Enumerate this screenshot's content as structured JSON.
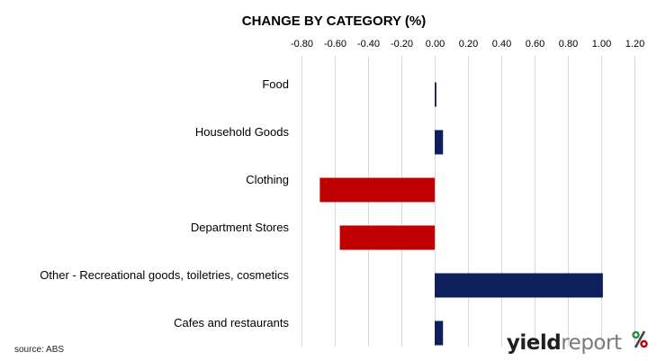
{
  "chart_data": {
    "type": "bar",
    "orientation": "horizontal",
    "title": "CHANGE BY CATEGORY (%)",
    "xlabel": "",
    "ylabel": "",
    "x_ticks": [
      "-0.80",
      "-0.60",
      "-0.40",
      "-0.20",
      "0.00",
      "0.20",
      "0.40",
      "0.60",
      "0.80",
      "1.00",
      "1.20"
    ],
    "xlim": [
      -0.8,
      1.2
    ],
    "tick_step": 0.2,
    "axis_position": "top",
    "grid": true,
    "categories": [
      "Food",
      "Household Goods",
      "Clothing",
      "Department Stores",
      "Other - Recreational goods, toiletries, cosmetics",
      "Cafes and restaurants"
    ],
    "values": [
      0.01,
      0.05,
      -0.69,
      -0.57,
      1.01,
      0.05
    ],
    "colors": {
      "positive": "#0d1f5c",
      "negative": "#c00000",
      "grid": "#d9d9d9"
    }
  },
  "footer": {
    "source": "source: ABS"
  },
  "logo": {
    "part1": "yield",
    "part2": "report",
    "symbol": "%"
  }
}
